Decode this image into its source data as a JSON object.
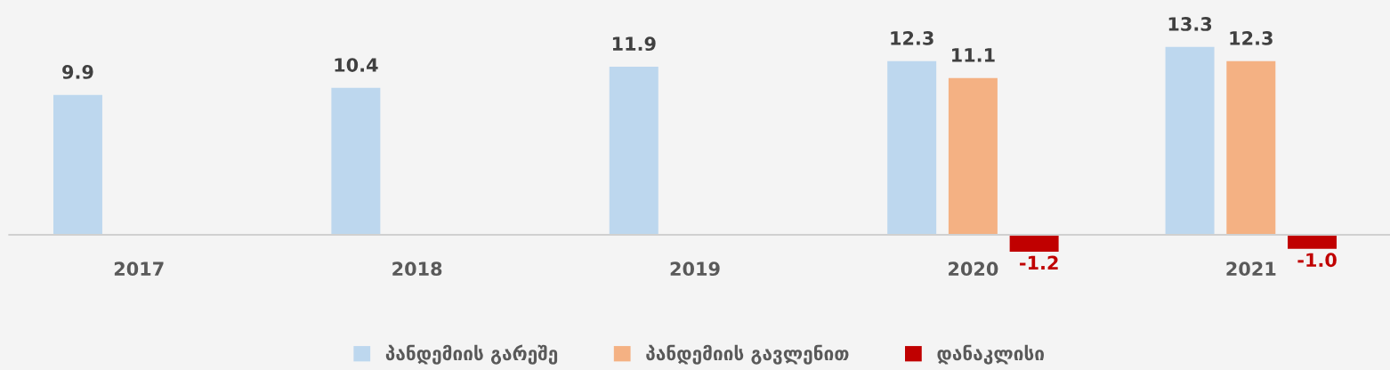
{
  "chart_data": {
    "type": "bar",
    "categories": [
      "2017",
      "2018",
      "2019",
      "2020",
      "2021"
    ],
    "series": [
      {
        "name": "პანდემიის გარეშე",
        "color": "#bdd7ee",
        "values": [
          9.9,
          10.4,
          11.9,
          12.3,
          13.3
        ],
        "value_labels": [
          "9.9",
          "10.4",
          "11.9",
          "12.3",
          "13.3"
        ]
      },
      {
        "name": "პანდემიის გავლენით",
        "color": "#f4b183",
        "values": [
          null,
          null,
          null,
          11.1,
          12.3
        ],
        "value_labels": [
          null,
          null,
          null,
          "11.1",
          "12.3"
        ]
      },
      {
        "name": "დანაკლისი",
        "color": "#c00000",
        "values": [
          null,
          null,
          null,
          -1.2,
          -1.0
        ],
        "value_labels": [
          null,
          null,
          null,
          "-1.2",
          "-1.0"
        ]
      }
    ],
    "legend": "bottom"
  }
}
